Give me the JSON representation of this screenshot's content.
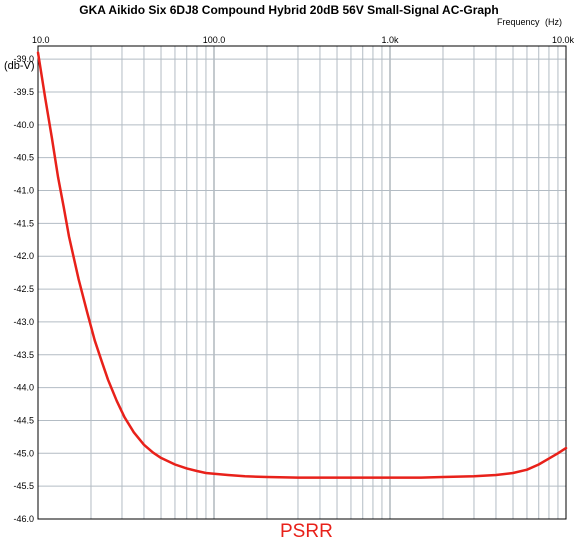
{
  "chart_data": {
    "type": "line",
    "title": "GKA Aikido Six 6DJ8 Compound Hybrid 20dB 56V Small-Signal AC-Graph",
    "xlabel": "Frequency",
    "xunit": "(Hz)",
    "ylabel": "(db-V)",
    "caption": "PSRR",
    "xscale": "log",
    "xlim": [
      10,
      10000
    ],
    "ylim": [
      -46.0,
      -38.8
    ],
    "grid": true,
    "x_tick_labels": [
      "10.0",
      "100.0",
      "1.0k",
      "10.0k"
    ],
    "y_tick_labels": [
      "-39.0",
      "-39.5",
      "-40.0",
      "-40.5",
      "-41.0",
      "-41.5",
      "-42.0",
      "-42.5",
      "-43.0",
      "-43.5",
      "-44.0",
      "-44.5",
      "-45.0",
      "-45.5",
      "-46.0"
    ],
    "series": [
      {
        "color": "#e8211a",
        "x": [
          10,
          11,
          12,
          13,
          14,
          15,
          17,
          19,
          21,
          23,
          25,
          28,
          31,
          35,
          40,
          45,
          50,
          60,
          70,
          80,
          90,
          100,
          120,
          150,
          200,
          300,
          400,
          500,
          700,
          1000,
          1500,
          2000,
          3000,
          4000,
          5000,
          6000,
          7000,
          8000,
          9000,
          10000
        ],
        "y": [
          -38.9,
          -39.6,
          -40.2,
          -40.8,
          -41.25,
          -41.7,
          -42.35,
          -42.85,
          -43.28,
          -43.6,
          -43.88,
          -44.2,
          -44.45,
          -44.68,
          -44.87,
          -44.99,
          -45.07,
          -45.17,
          -45.23,
          -45.27,
          -45.3,
          -45.31,
          -45.33,
          -45.35,
          -45.36,
          -45.37,
          -45.37,
          -45.37,
          -45.37,
          -45.37,
          -45.37,
          -45.36,
          -45.35,
          -45.33,
          -45.3,
          -45.25,
          -45.17,
          -45.08,
          -45.0,
          -44.92
        ]
      }
    ]
  }
}
